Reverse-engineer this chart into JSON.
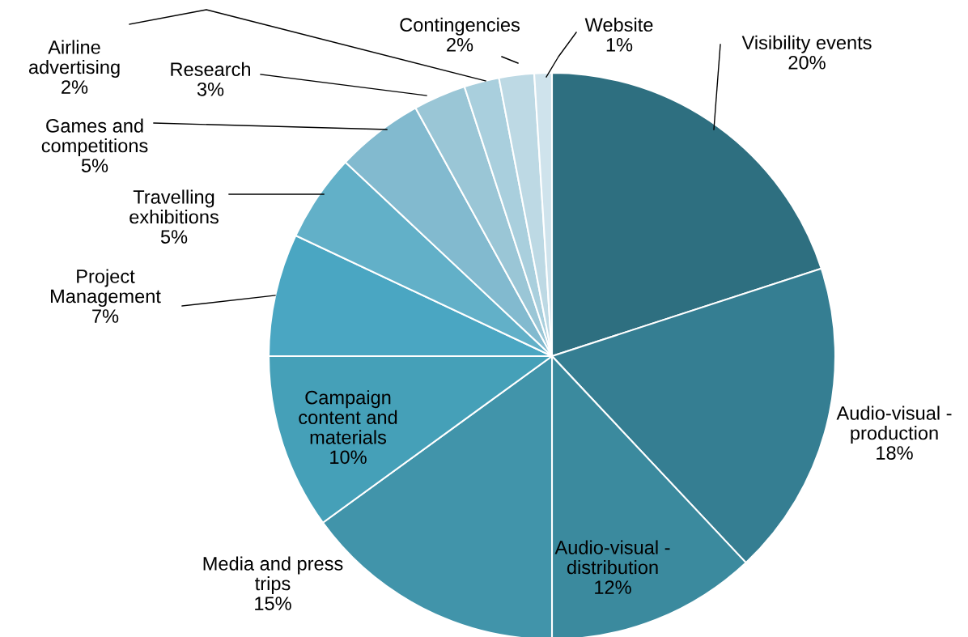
{
  "chart_data": {
    "type": "pie",
    "categories": [
      "Visibility events",
      "Audio-visual -\nproduction",
      "Audio-visual -\ndistribution",
      "Media and press\ntrips",
      "Campaign\ncontent and\nmaterials",
      "Project\nManagement",
      "Travelling\nexhibitions",
      "Games and\ncompetitions",
      "Research",
      "Airline\nadvertising",
      "Contingencies",
      "Website"
    ],
    "values": [
      20,
      18,
      12,
      15,
      10,
      7,
      5,
      5,
      3,
      2,
      2,
      1
    ],
    "colors": [
      "#2e6f80",
      "#357e92",
      "#3b8a9e",
      "#4194aa",
      "#45a0b8",
      "#4aa6c2",
      "#62b0c8",
      "#82bacf",
      "#9ac6d6",
      "#a9cfdd",
      "#bdd9e4",
      "#cfe3ec"
    ],
    "value_labels": [
      "20%",
      "18%",
      "12%",
      "15%",
      "10%",
      "7%",
      "5%",
      "5%",
      "3%",
      "2%",
      "2%",
      "1%"
    ]
  }
}
